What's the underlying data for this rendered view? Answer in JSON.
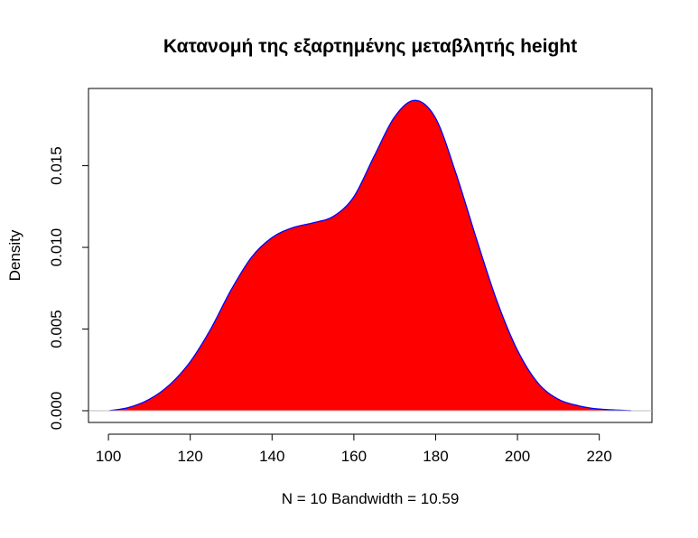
{
  "chart_data": {
    "type": "area",
    "title": "Κατανομή της εξαρτημένης μεταβλητής height",
    "xlabel": "N = 10   Bandwidth = 10.59",
    "ylabel": "Density",
    "xlim": [
      100.2,
      227.8
    ],
    "ylim": [
      0,
      0.0189
    ],
    "x_ticks": [
      100,
      120,
      140,
      160,
      180,
      200,
      220
    ],
    "x_tick_labels": [
      "100",
      "120",
      "140",
      "160",
      "180",
      "200",
      "220"
    ],
    "y_ticks": [
      0.0,
      0.005,
      0.01,
      0.015
    ],
    "y_tick_labels": [
      "0.000",
      "0.005",
      "0.010",
      "0.015"
    ],
    "grid": false,
    "fill_color": "#ff0000",
    "line_color": "#0000ff",
    "baseline_color": "#bebebe",
    "series": [
      {
        "x": [
          100.2,
          105,
          110,
          115,
          120,
          125,
          130,
          135,
          140,
          145,
          150,
          155,
          160,
          165,
          170,
          175,
          180,
          185,
          190,
          195,
          200,
          205,
          210,
          215,
          220,
          227.8
        ],
        "values": [
          0.0,
          0.0002,
          0.0007,
          0.0016,
          0.003,
          0.005,
          0.0074,
          0.0094,
          0.0106,
          0.0112,
          0.0115,
          0.0119,
          0.0131,
          0.0156,
          0.018,
          0.019,
          0.0179,
          0.0145,
          0.0105,
          0.0067,
          0.0037,
          0.0017,
          0.0007,
          0.0003,
          0.0001,
          0.0
        ]
      }
    ]
  }
}
